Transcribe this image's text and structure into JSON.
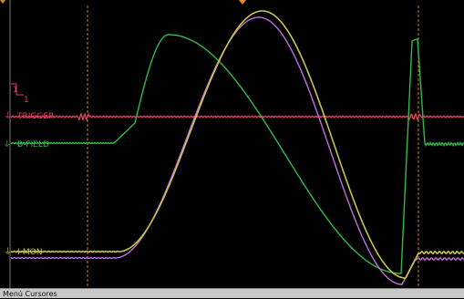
{
  "channels": {
    "trigger": {
      "label": "TRIGGER",
      "color": "#e0405a"
    },
    "bfield": {
      "label": "B-FIELD",
      "color": "#33b84a"
    },
    "imon": {
      "label": "I-MON",
      "color": "#c9c34a"
    },
    "imon2": {
      "color": "#c070d8"
    }
  },
  "markers": {
    "level_marker": "1",
    "ground_marker": "1",
    "cursor_color": "#e08a2a"
  },
  "menu": {
    "label": "Menú Cursores"
  }
}
